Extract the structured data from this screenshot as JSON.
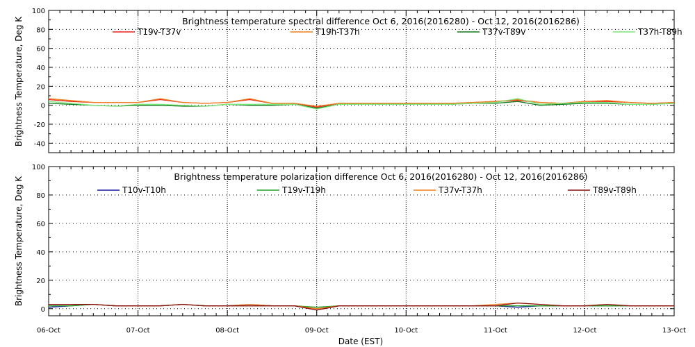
{
  "x_axis": {
    "label": "Date (EST)",
    "ticks": [
      "06-Oct",
      "07-Oct",
      "08-Oct",
      "09-Oct",
      "10-Oct",
      "11-Oct",
      "12-Oct",
      "13-Oct"
    ]
  },
  "chart_data": [
    {
      "type": "line",
      "title": "Brightness temperature spectral difference     Oct  6, 2016(2016280) - Oct 12, 2016(2016286)",
      "ylabel": "Brightness Temperature, Deg K",
      "xlabel": "",
      "xlim": [
        0,
        7
      ],
      "ylim": [
        -50,
        100
      ],
      "yticks": [
        -40,
        -20,
        0,
        20,
        40,
        60,
        80,
        100
      ],
      "grid": "vertical dotted lines at each day",
      "legend_placement": "top",
      "x": [
        0,
        0.25,
        0.5,
        0.75,
        1,
        1.25,
        1.5,
        1.75,
        2,
        2.25,
        2.5,
        2.75,
        3,
        3.25,
        3.5,
        3.75,
        4,
        4.25,
        4.5,
        4.75,
        5,
        5.25,
        5.5,
        5.75,
        6,
        6.25,
        6.5,
        6.75,
        7
      ],
      "series": [
        {
          "name": "T19v-T37v",
          "color": "#e8241c",
          "values": [
            6,
            4,
            3,
            3,
            3,
            6,
            3,
            2,
            3,
            6,
            2,
            2,
            -2,
            2,
            2,
            2,
            2,
            2,
            2,
            3,
            4,
            5,
            3,
            2,
            4,
            4,
            3,
            2,
            3
          ]
        },
        {
          "name": "T19h-T37h",
          "color": "#f07f1e",
          "values": [
            7,
            5,
            3,
            3,
            3,
            7,
            3,
            2,
            3,
            7,
            2,
            2,
            -1,
            2,
            2,
            2,
            2,
            2,
            2,
            3,
            4,
            6,
            3,
            2,
            4,
            5,
            3,
            2,
            3
          ]
        },
        {
          "name": "T37v-T89v",
          "color": "#117a1a",
          "values": [
            2,
            1,
            0,
            -1,
            0,
            0,
            -1,
            -1,
            1,
            0,
            0,
            1,
            -3,
            1,
            1,
            1,
            1,
            1,
            1,
            2,
            2,
            4,
            0,
            1,
            2,
            2,
            1,
            1,
            2
          ]
        },
        {
          "name": "T37h-T89h",
          "color": "#7de87b",
          "values": [
            4,
            2,
            0,
            -1,
            1,
            1,
            0,
            -1,
            1,
            1,
            1,
            1,
            -4,
            1,
            1,
            1,
            1,
            1,
            1,
            2,
            3,
            7,
            1,
            2,
            3,
            3,
            1,
            1,
            2
          ]
        }
      ]
    },
    {
      "type": "line",
      "title": "Brightness temperature polarization difference     Oct  6, 2016(2016280) - Oct 12, 2016(2016286)",
      "ylabel": "Brightness Temperature, Deg K",
      "xlabel": "Date (EST)",
      "xlim": [
        0,
        7
      ],
      "ylim": [
        -5,
        100
      ],
      "yticks": [
        0,
        20,
        40,
        60,
        80,
        100
      ],
      "grid": "vertical dotted lines at each day",
      "legend_placement": "top",
      "x": [
        0,
        0.25,
        0.5,
        0.75,
        1,
        1.25,
        1.5,
        1.75,
        2,
        2.25,
        2.5,
        2.75,
        3,
        3.25,
        3.5,
        3.75,
        4,
        4.25,
        4.5,
        4.75,
        5,
        5.25,
        5.5,
        5.75,
        6,
        6.25,
        6.5,
        6.75,
        7
      ],
      "series": [
        {
          "name": "T10v-T10h",
          "color": "#1818a8",
          "values": [
            1,
            2,
            3,
            2,
            2,
            2,
            3,
            2,
            2,
            3,
            2,
            2,
            0,
            2,
            2,
            2,
            2,
            2,
            2,
            2,
            2,
            1,
            2,
            2,
            2,
            2,
            2,
            2,
            2
          ]
        },
        {
          "name": "T19v-T19h",
          "color": "#22a022",
          "values": [
            2,
            2,
            3,
            2,
            2,
            2,
            3,
            2,
            2,
            2,
            2,
            2,
            1,
            2,
            2,
            2,
            2,
            2,
            2,
            2,
            2,
            2,
            2,
            2,
            2,
            2,
            2,
            2,
            2
          ]
        },
        {
          "name": "T37v-T37h",
          "color": "#f07f1e",
          "values": [
            3,
            3,
            3,
            2,
            2,
            2,
            3,
            2,
            2,
            3,
            2,
            2,
            0,
            2,
            2,
            2,
            2,
            2,
            2,
            2,
            3,
            4,
            3,
            2,
            2,
            3,
            2,
            2,
            2
          ]
        },
        {
          "name": "T89v-T89h",
          "color": "#8a1010",
          "values": [
            3,
            3,
            3,
            2,
            2,
            2,
            3,
            2,
            2,
            2,
            2,
            2,
            -1,
            2,
            2,
            2,
            2,
            2,
            2,
            2,
            2,
            4,
            3,
            2,
            2,
            3,
            2,
            2,
            2
          ]
        }
      ]
    }
  ]
}
